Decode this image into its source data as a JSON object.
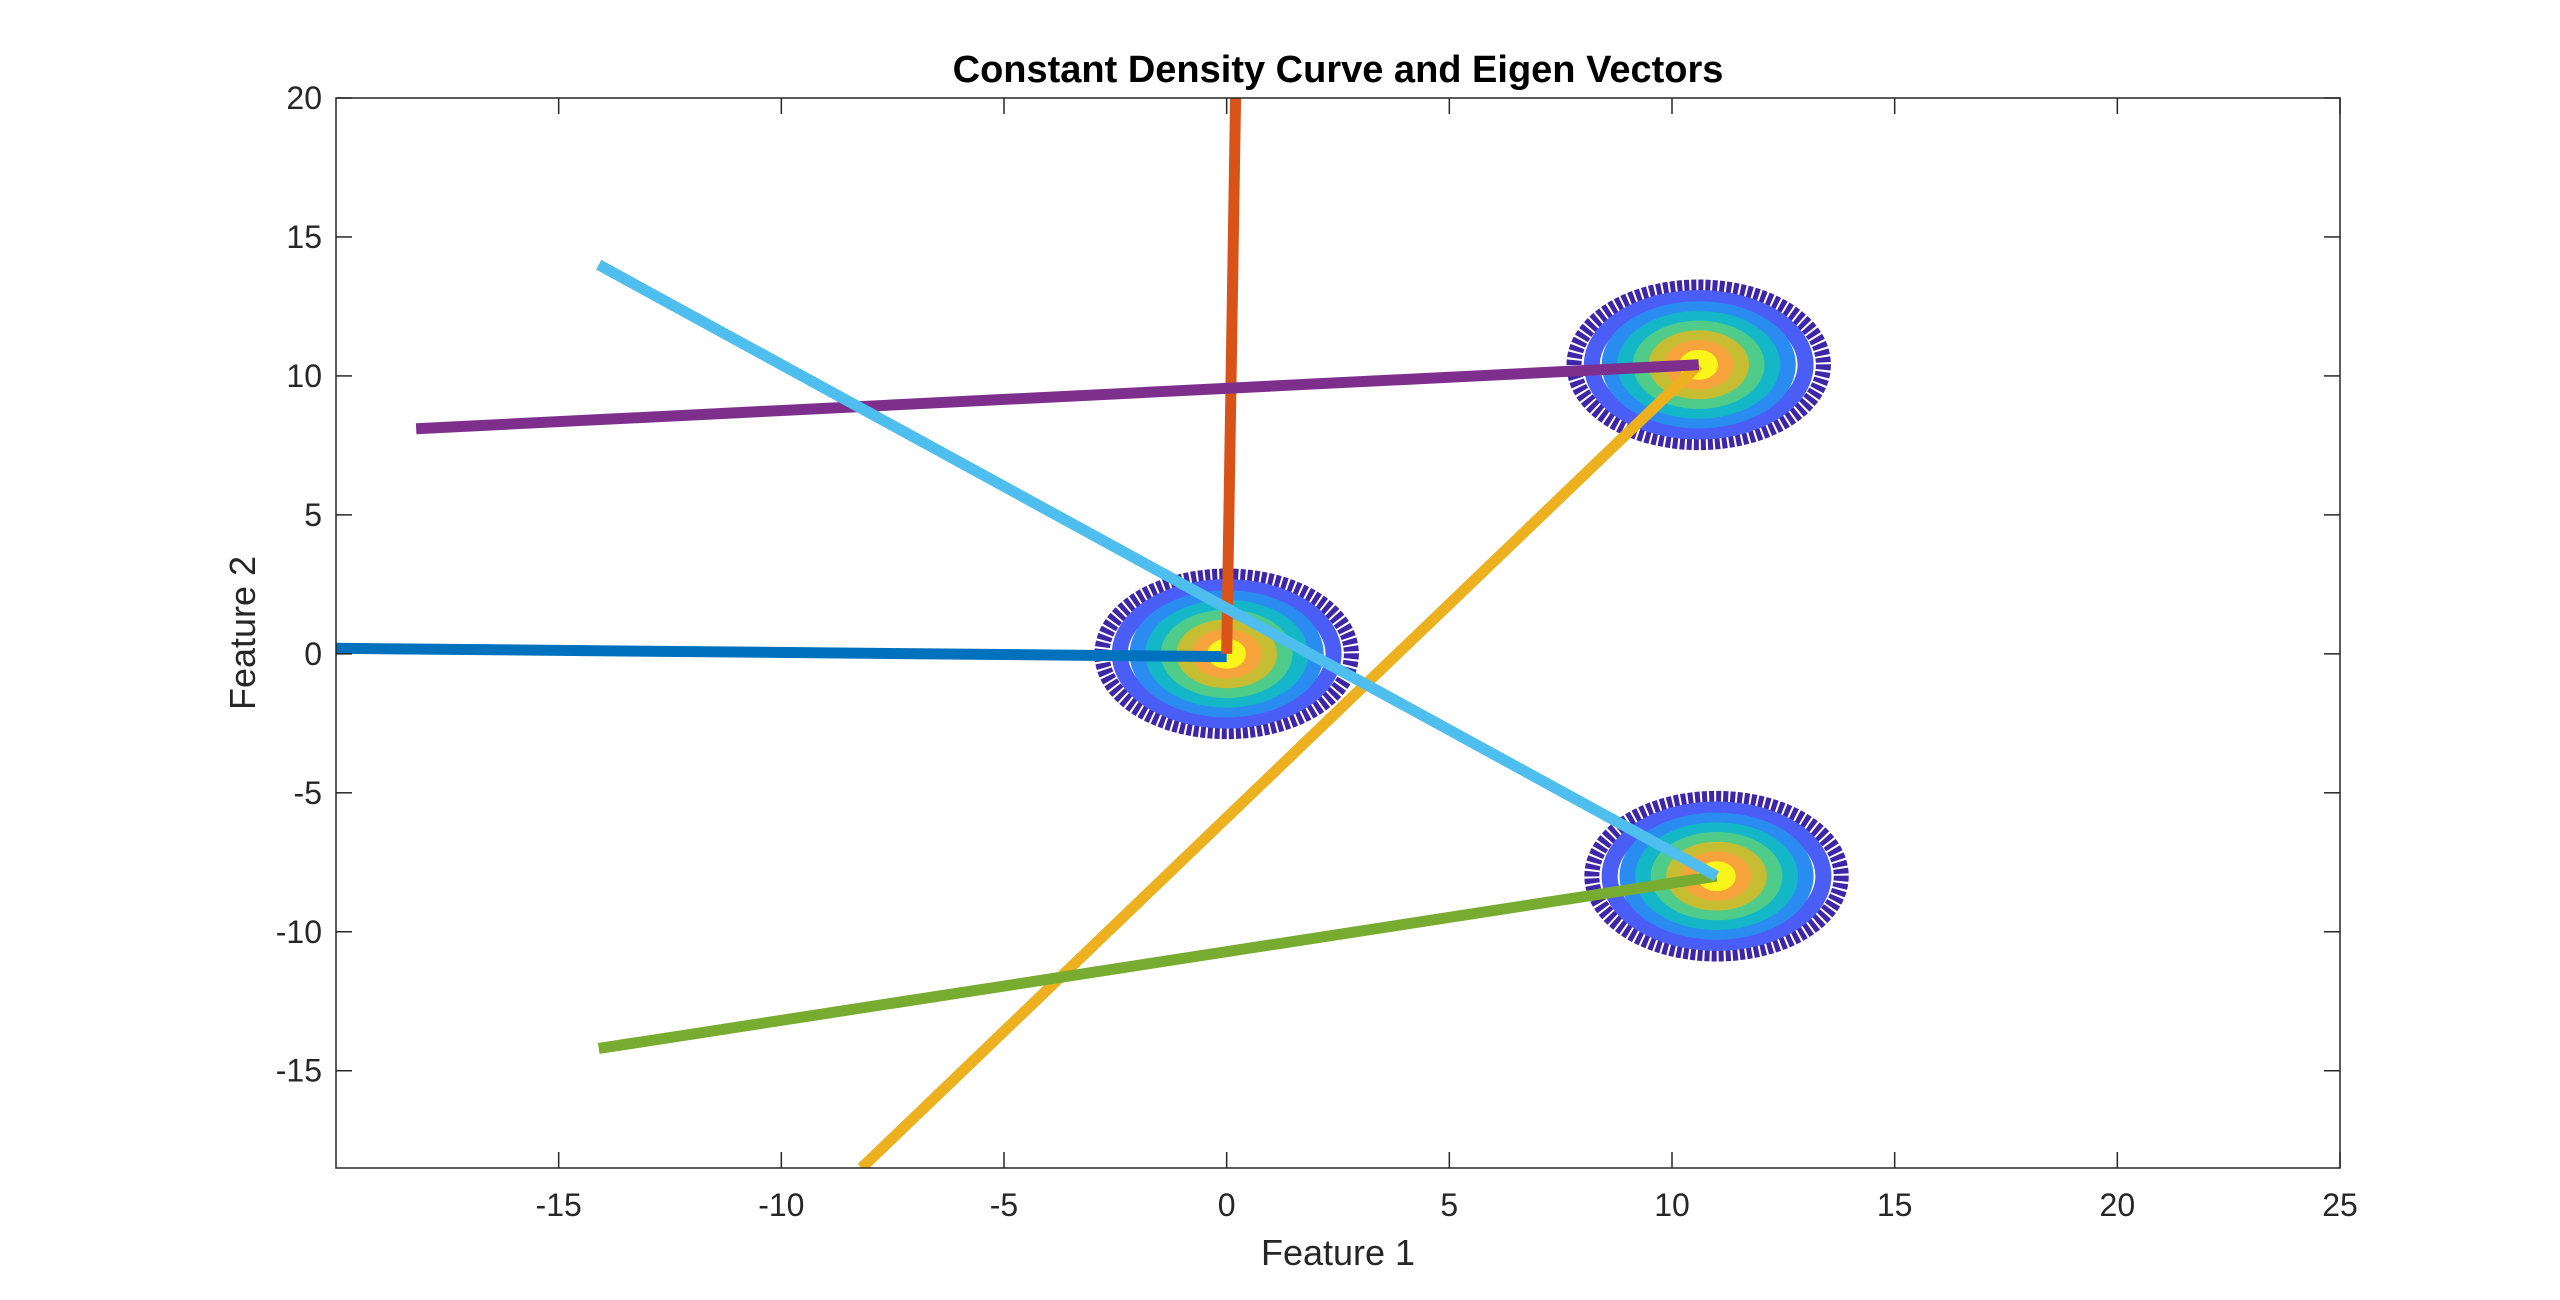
{
  "chart_data": {
    "type": "line",
    "title": "Constant Density Curve and Eigen Vectors",
    "xlabel": "Feature 1",
    "ylabel": "Feature 2",
    "xlim": [
      -20,
      25
    ],
    "ylim": [
      -18.5,
      20
    ],
    "xticks": [
      "-15",
      "-10",
      "-5",
      "0",
      "5",
      "10",
      "15",
      "20",
      "25"
    ],
    "xtick_values": [
      -15,
      -10,
      -5,
      0,
      5,
      10,
      15,
      20,
      25
    ],
    "yticks": [
      "20",
      "15",
      "10",
      "5",
      "0",
      "-5",
      "-10",
      "-15"
    ],
    "ytick_values": [
      20,
      15,
      10,
      5,
      0,
      -5,
      -10,
      -15
    ],
    "grid": false,
    "legend": "none",
    "contours": [
      {
        "center": [
          0,
          0
        ],
        "radii": [
          2.8,
          2.4,
          2.0,
          1.65,
          1.3,
          0.95,
          0.6,
          0.25
        ]
      },
      {
        "center": [
          10.6,
          10.4
        ],
        "radii": [
          2.8,
          2.4,
          2.0,
          1.65,
          1.3,
          0.95,
          0.6,
          0.25
        ]
      },
      {
        "center": [
          11.0,
          -8.0
        ],
        "radii": [
          2.8,
          2.4,
          2.0,
          1.65,
          1.3,
          0.95,
          0.6,
          0.25
        ]
      }
    ],
    "contour_colors": [
      "#3d26a8",
      "#4a5ef5",
      "#2a8cf0",
      "#14b7c7",
      "#4fcc8a",
      "#c6bd33",
      "#f5a33a",
      "#f9f51a"
    ],
    "series": [
      {
        "color": "#0072bd",
        "points": [
          [
            -20,
            0.2
          ],
          [
            0,
            -0.1
          ]
        ]
      },
      {
        "color": "#d95319",
        "points": [
          [
            0,
            0
          ],
          [
            0.2,
            20
          ]
        ]
      },
      {
        "color": "#edb120",
        "points": [
          [
            -8.2,
            -18.5
          ],
          [
            10.6,
            10.4
          ]
        ]
      },
      {
        "color": "#7e2f8e",
        "points": [
          [
            -18.2,
            8.1
          ],
          [
            10.6,
            10.4
          ]
        ]
      },
      {
        "color": "#77ac30",
        "points": [
          [
            -14.1,
            -14.2
          ],
          [
            11.0,
            -8.0
          ]
        ]
      },
      {
        "color": "#4dbeee",
        "points": [
          [
            -14.1,
            14.0
          ],
          [
            11.0,
            -8.0
          ]
        ]
      }
    ]
  }
}
